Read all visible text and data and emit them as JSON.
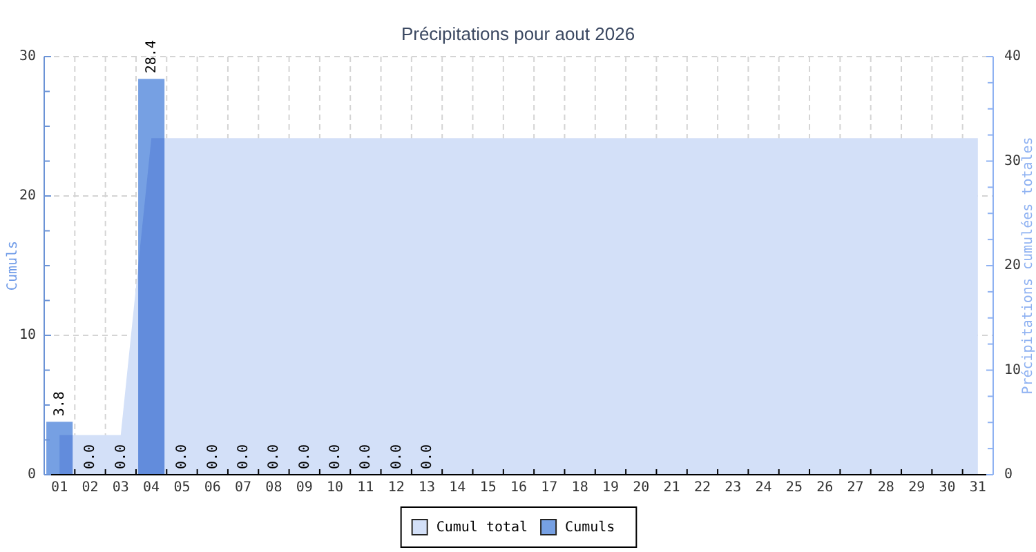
{
  "chart_data": {
    "type": "bar",
    "title": "Précipitations pour aout 2026",
    "ylabel": "Cumuls",
    "y2label": "Précipitations cumulées totales",
    "categories": [
      "01",
      "02",
      "03",
      "04",
      "05",
      "06",
      "07",
      "08",
      "09",
      "10",
      "11",
      "12",
      "13",
      "14",
      "15",
      "16",
      "17",
      "18",
      "19",
      "20",
      "21",
      "22",
      "23",
      "24",
      "25",
      "26",
      "27",
      "28",
      "29",
      "30",
      "31"
    ],
    "series": [
      {
        "name": "Cumul total",
        "type": "area",
        "axis": "y2",
        "color": "#d3e0f8",
        "values": [
          3.8,
          3.8,
          3.8,
          32.2,
          32.2,
          32.2,
          32.2,
          32.2,
          32.2,
          32.2,
          32.2,
          32.2,
          32.2,
          32.2,
          32.2,
          32.2,
          32.2,
          32.2,
          32.2,
          32.2,
          32.2,
          32.2,
          32.2,
          32.2,
          32.2,
          32.2,
          32.2,
          32.2,
          32.2,
          32.2,
          32.2
        ]
      },
      {
        "name": "Cumuls",
        "color": "#76a0e3",
        "values": [
          3.8,
          0,
          0,
          28.4,
          0,
          0,
          0,
          0,
          0,
          0,
          0,
          0,
          0,
          null,
          null,
          null,
          null,
          null,
          null,
          null,
          null,
          null,
          null,
          null,
          null,
          null,
          null,
          null,
          null,
          null,
          null
        ],
        "value_labels": [
          "3.8",
          "0.0",
          "0.0",
          "28.4",
          "0.0",
          "0.0",
          "0.0",
          "0.0",
          "0.0",
          "0.0",
          "0.0",
          "0.0",
          "0.0",
          null,
          null,
          null,
          null,
          null,
          null,
          null,
          null,
          null,
          null,
          null,
          null,
          null,
          null,
          null,
          null,
          null,
          null
        ]
      }
    ],
    "ylim": [
      0,
      30
    ],
    "yticks": [
      0,
      {
        "value": 2.5,
        "label": null
      },
      {
        "value": 5,
        "label": null
      },
      {
        "value": 7.5,
        "label": null
      },
      10,
      {
        "value": 12.5,
        "label": null
      },
      {
        "value": 15,
        "label": null
      },
      {
        "value": 17.5,
        "label": null
      },
      20,
      {
        "value": 22.5,
        "label": null
      },
      {
        "value": 25,
        "label": null
      },
      {
        "value": 27.5,
        "label": null
      },
      30
    ],
    "y2lim": [
      0,
      40
    ],
    "y2ticks": [
      0,
      {
        "value": 2.5,
        "label": null
      },
      {
        "value": 5,
        "label": null
      },
      {
        "value": 7.5,
        "label": null
      },
      10,
      {
        "value": 12.5,
        "label": null
      },
      {
        "value": 15,
        "label": null
      },
      {
        "value": 17.5,
        "label": null
      },
      20,
      {
        "value": 22.5,
        "label": null
      },
      {
        "value": 25,
        "label": null
      },
      {
        "value": 27.5,
        "label": null
      },
      30,
      {
        "value": 32.5,
        "label": null
      },
      {
        "value": 35,
        "label": null
      },
      {
        "value": 37.5,
        "label": null
      },
      40
    ],
    "grid": true,
    "legend": "bottom"
  }
}
